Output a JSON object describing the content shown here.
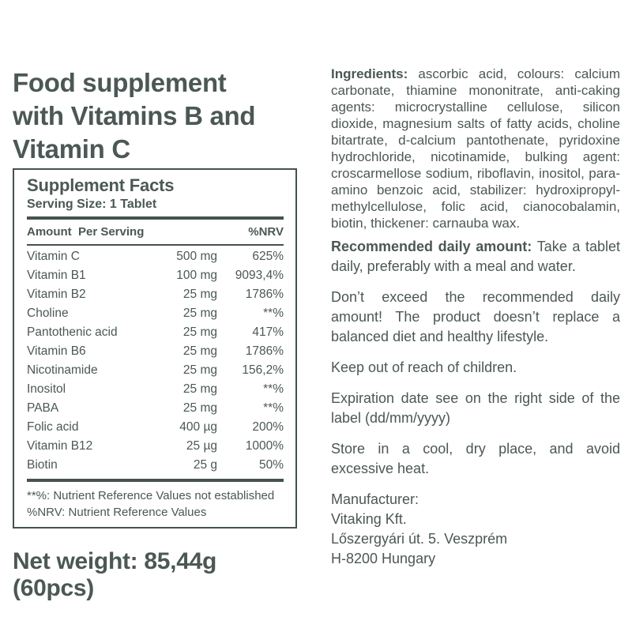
{
  "colors": {
    "text": "#4b5855",
    "rule": "#45524f",
    "background": "#ffffff"
  },
  "left": {
    "title": "Food supplement\nwith Vitamins B and\nVitamin C",
    "facts": {
      "heading": "Supplement Facts",
      "serving_size": "Serving Size: 1 Tablet",
      "col_amount": "Amount  Per Serving",
      "col_nrv": "%NRV",
      "rows": [
        {
          "name": "Vitamin C",
          "amount": "500 mg",
          "nrv": "625%"
        },
        {
          "name": "Vitamin B1",
          "amount": "100 mg",
          "nrv": "9093,4%"
        },
        {
          "name": "Vitamin B2",
          "amount": "25 mg",
          "nrv": "1786%"
        },
        {
          "name": "Choline",
          "amount": "25 mg",
          "nrv": "**%"
        },
        {
          "name": "Pantothenic acid",
          "amount": "25 mg",
          "nrv": "417%"
        },
        {
          "name": "Vitamin B6",
          "amount": "25 mg",
          "nrv": "1786%"
        },
        {
          "name": "Nicotinamide",
          "amount": "25 mg",
          "nrv": "156,2%"
        },
        {
          "name": "Inositol",
          "amount": "25 mg",
          "nrv": "**%"
        },
        {
          "name": "PABA",
          "amount": "25 mg",
          "nrv": "**%"
        },
        {
          "name": "Folic acid",
          "amount": "400 µg",
          "nrv": "200%"
        },
        {
          "name": "Vitamin B12",
          "amount": "25 µg",
          "nrv": "1000%"
        },
        {
          "name": "Biotin",
          "amount": "25 g",
          "nrv": "50%"
        }
      ],
      "footnotes": [
        "**%: Nutrient Reference Values not established",
        "%NRV: Nutrient Reference Values"
      ]
    },
    "net_weight": "Net weight: 85,44g (60pcs)"
  },
  "right": {
    "paragraphs": [
      {
        "lead": "Ingredients: ",
        "body": "ascorbic acid, colours: calcium carbonate, thiamine mononitrate, anti-caking agents: microcrystalline cellulose, silicon dioxide, magnesium salts of fatty acids, choline bitartrate, d-calcium pantothenate, pyridoxine hydrochloride, nicotinamide, bulking agent: croscarmellose sodium, riboflavin, inositol, para-amino benzoic acid, stabilizer: hydroxipropyl-methylcellulose, folic acid, cianocobalamin, biotin, thickener: carnauba wax."
      },
      {
        "lead": "Recommended daily amount: ",
        "body": "Take a tablet daily, preferably with a meal and water."
      },
      {
        "body": "Don’t exceed the recommended daily amount! The product doesn’t replace a balanced diet and healthy lifestyle."
      },
      {
        "body": "Keep out of reach of children."
      },
      {
        "body": "Expiration date see on the right side of the label (dd/mm/yyyy)"
      },
      {
        "body": "Store in a cool, dry place, and avoid excessive heat."
      },
      {
        "body": "Manufacturer:\nVitaking Kft.\nLőszergyári út. 5. Veszprém\nH-8200 Hungary"
      }
    ]
  }
}
